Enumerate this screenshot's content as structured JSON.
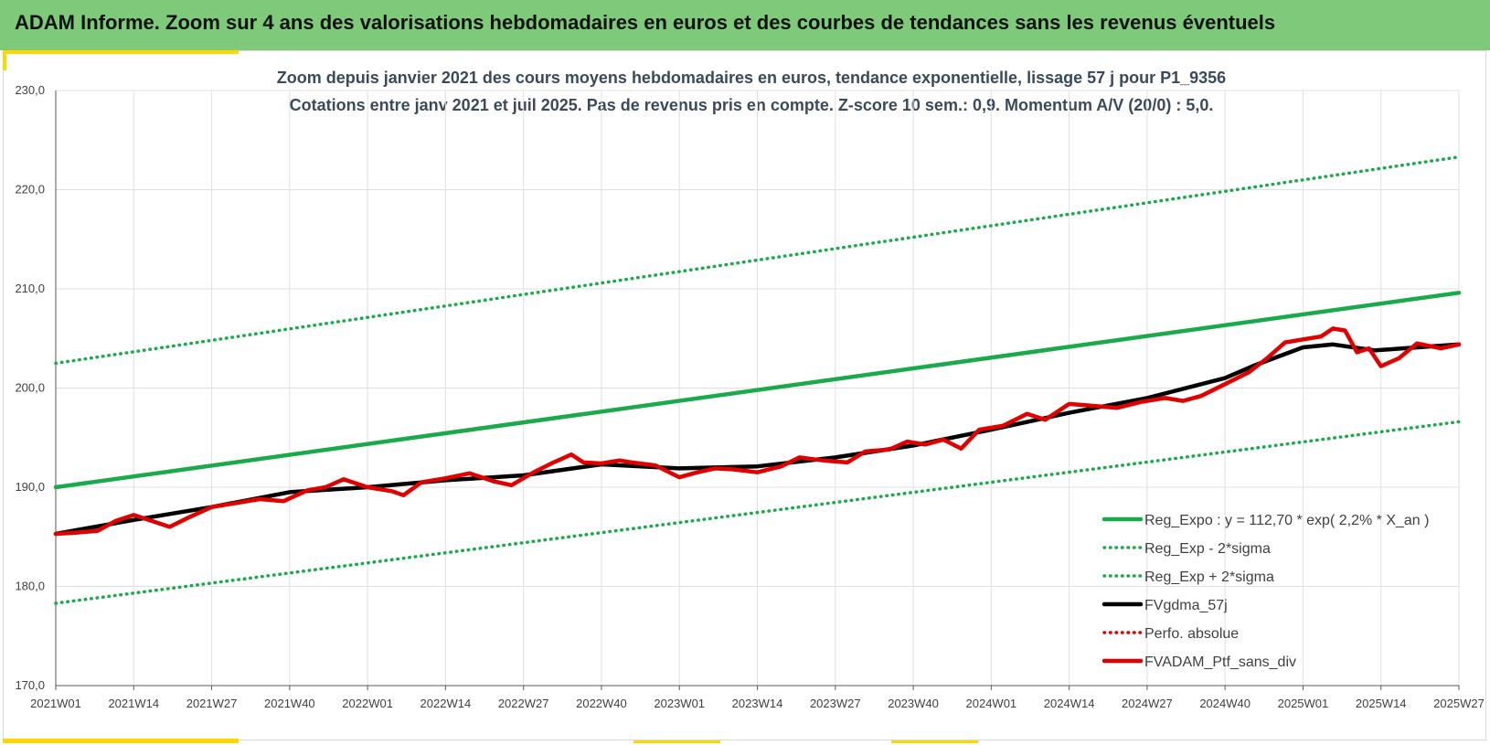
{
  "header": {
    "title": "ADAM Informe. Zoom sur 4 ans des valorisations hebdomadaires en euros et des courbes de tendances sans les revenus éventuels"
  },
  "colors": {
    "banner": "#7fc97a",
    "accent_yellow": "#ffd700",
    "trend": "#1aaa4b",
    "sigma": "#1aaa4b",
    "smooth": "#000000",
    "perfo": "#e00000",
    "portfolio": "#e00000",
    "grid": "#e0e0e0"
  },
  "chart_data": {
    "type": "line",
    "title": "Zoom depuis janvier 2021 des cours moyens hebdomadaires  en euros, tendance exponentielle, lissage 57 j pour P1_9356",
    "subtitle": "Cotations entre janv 2021 et juil 2025. Pas de revenus pris en compte. Z-score 10 sem.: 0,9. Momentum A/V (20/0) : 5,0.",
    "xlabel": "",
    "ylabel": "",
    "ylim": [
      170,
      230
    ],
    "yticks": [
      "170,0",
      "180,0",
      "190,0",
      "200,0",
      "210,0",
      "220,0",
      "230,0"
    ],
    "x_tick_labels": [
      "2021W01",
      "2021W14",
      "2021W27",
      "2021W40",
      "2022W01",
      "2022W14",
      "2022W27",
      "2022W40",
      "2023W01",
      "2023W14",
      "2023W27",
      "2023W40",
      "2024W01",
      "2024W14",
      "2024W27",
      "2024W40",
      "2025W01",
      "2025W14",
      "2025W27"
    ],
    "x_ticks_weeks": [
      0,
      13,
      26,
      39,
      52,
      65,
      78,
      91,
      104,
      117,
      130,
      143,
      156,
      169,
      182,
      195,
      208,
      221,
      234
    ],
    "grid": true,
    "legend_position": "bottom-right",
    "series": [
      {
        "name": "Reg_Expo : y = 112,70 * exp( 2,2% *  X_an )",
        "style": "solid-thick",
        "color": "#1aaa4b",
        "x_week": [
          0,
          234
        ],
        "values": [
          190.0,
          209.6
        ]
      },
      {
        "name": "Reg_Exp - 2*sigma",
        "style": "dotted",
        "color": "#1aaa4b",
        "x_week": [
          0,
          234
        ],
        "values": [
          178.3,
          196.6
        ]
      },
      {
        "name": "Reg_Exp + 2*sigma",
        "style": "dotted",
        "color": "#1aaa4b",
        "x_week": [
          0,
          234
        ],
        "values": [
          202.5,
          223.3
        ]
      },
      {
        "name": "FVgdma_57j",
        "style": "solid-thick",
        "color": "#000000",
        "x_week": [
          0,
          13,
          26,
          39,
          52,
          65,
          78,
          91,
          104,
          117,
          130,
          143,
          156,
          169,
          182,
          195,
          200,
          208,
          213,
          220,
          234
        ],
        "values": [
          185.3,
          186.7,
          188.0,
          189.5,
          190.0,
          190.7,
          191.2,
          192.3,
          191.9,
          192.1,
          193.0,
          194.2,
          195.8,
          197.5,
          199.0,
          201.0,
          202.3,
          204.1,
          204.4,
          203.8,
          204.4
        ]
      },
      {
        "name": "Perfo. absolue",
        "style": "dotted",
        "color": "#e00000",
        "x_week": [],
        "values": []
      },
      {
        "name": "FVADAM_Ptf_sans_div",
        "style": "solid-thick",
        "color": "#e00000",
        "x_week": [
          0,
          3,
          7,
          10,
          13,
          16,
          19,
          22,
          26,
          30,
          34,
          38,
          42,
          45,
          48,
          52,
          56,
          58,
          61,
          65,
          69,
          73,
          76,
          80,
          83,
          86,
          88,
          91,
          94,
          96,
          100,
          104,
          107,
          110,
          113,
          117,
          121,
          124,
          128,
          132,
          135,
          139,
          142,
          145,
          148,
          151,
          154,
          158,
          162,
          165,
          169,
          173,
          177,
          181,
          185,
          188,
          191,
          195,
          199,
          202,
          205,
          208,
          211,
          213,
          215,
          217,
          219,
          221,
          224,
          227,
          231,
          234
        ],
        "values": [
          185.3,
          185.4,
          185.6,
          186.6,
          187.2,
          186.6,
          186.0,
          186.9,
          188.0,
          188.4,
          188.8,
          188.6,
          189.7,
          190.0,
          190.8,
          190.0,
          189.6,
          189.2,
          190.5,
          190.9,
          191.4,
          190.6,
          190.2,
          191.6,
          192.5,
          193.3,
          192.5,
          192.4,
          192.7,
          192.5,
          192.2,
          191.0,
          191.5,
          191.9,
          191.8,
          191.5,
          192.1,
          193.0,
          192.7,
          192.5,
          193.6,
          193.8,
          194.6,
          194.3,
          194.8,
          193.9,
          195.8,
          196.2,
          197.4,
          196.8,
          198.4,
          198.2,
          198.0,
          198.6,
          199.0,
          198.7,
          199.2,
          200.4,
          201.6,
          203.0,
          204.6,
          204.9,
          205.2,
          206.0,
          205.8,
          203.6,
          204.0,
          202.2,
          203.0,
          204.5,
          204.0,
          204.4
        ]
      }
    ]
  }
}
